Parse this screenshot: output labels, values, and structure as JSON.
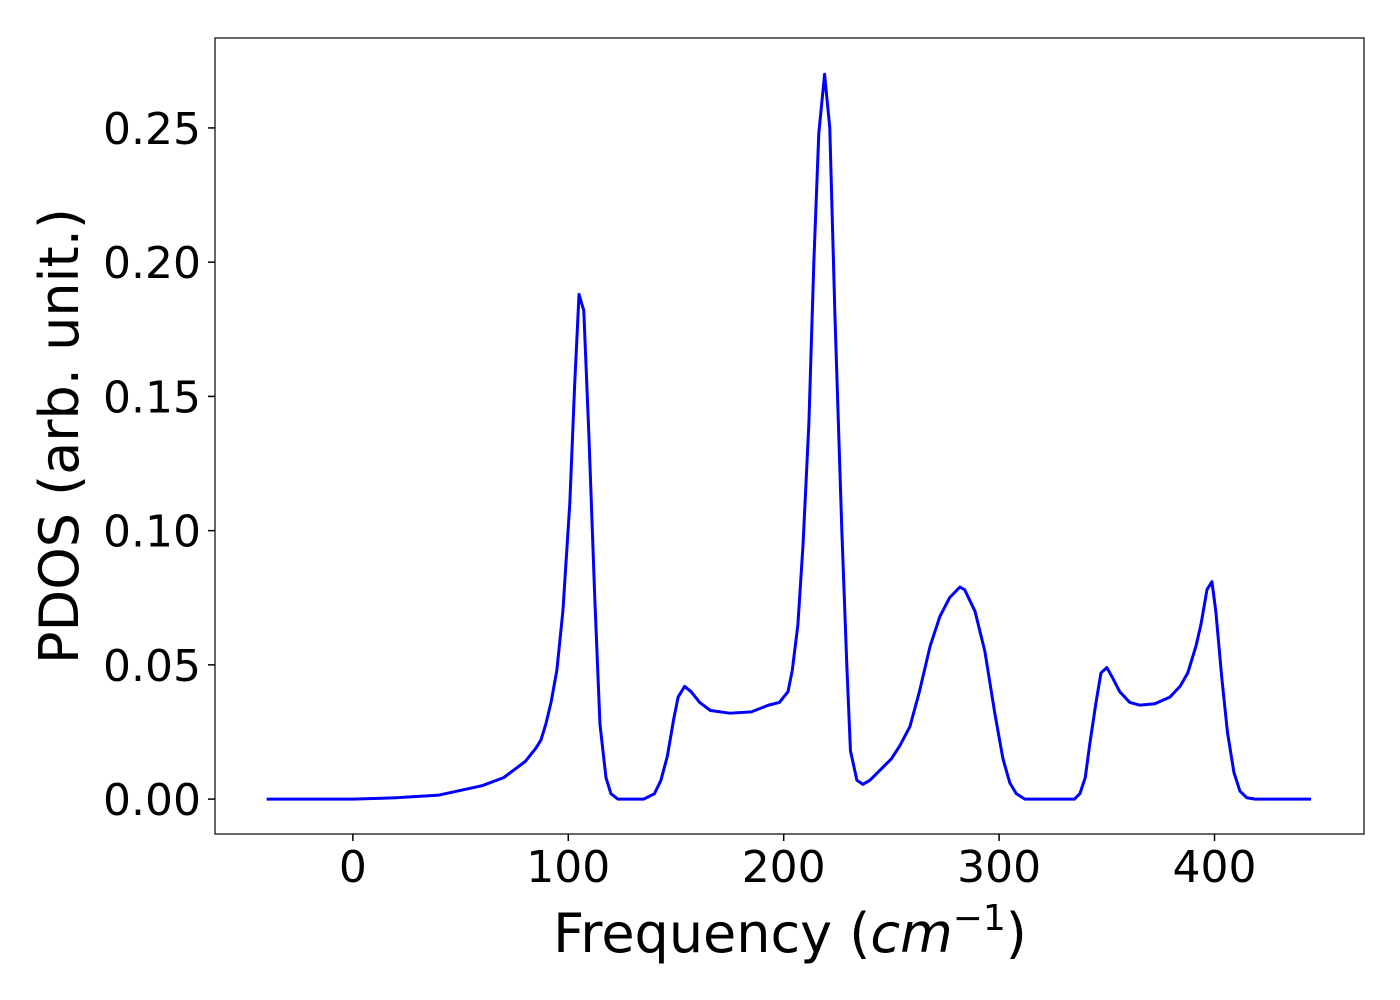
{
  "chart_data": {
    "type": "line",
    "xlabel": [
      "Frequency (",
      "cm",
      "−1",
      ")"
    ],
    "ylabel": "PDOS (arb. unit.)",
    "color": "#0000ff",
    "x": [
      -40,
      0,
      20,
      40,
      60,
      70,
      80,
      85,
      87.3,
      89.6,
      92,
      94.7,
      97.5,
      100.7,
      103,
      105,
      107.2,
      109.6,
      112.3,
      114.7,
      117.5,
      119.8,
      123,
      135,
      140,
      143,
      146,
      149,
      151,
      154,
      157,
      161,
      166,
      175,
      185,
      193,
      198,
      202,
      204,
      206.6,
      209,
      211.7,
      214,
      216.3,
      219,
      221.4,
      223.8,
      227,
      229.3,
      231,
      234,
      236.8,
      240,
      245,
      250,
      254,
      258.6,
      263,
      268,
      272.5,
      277,
      281.8,
      284,
      288.8,
      293.4,
      298,
      301.8,
      305,
      308,
      312,
      335,
      337.5,
      340,
      342,
      345,
      347.3,
      350,
      352.8,
      356,
      360.7,
      365.4,
      372.3,
      379.3,
      384,
      387.6,
      391.4,
      393.7,
      396.5,
      398.8,
      400.6,
      403.4,
      406,
      409,
      411.8,
      415,
      418.8,
      444.8
    ],
    "values": [
      0,
      0,
      0.0005,
      0.0015,
      0.005,
      0.008,
      0.014,
      0.019,
      0.022,
      0.028,
      0.036,
      0.048,
      0.07,
      0.11,
      0.155,
      0.188,
      0.182,
      0.135,
      0.075,
      0.028,
      0.008,
      0.002,
      0,
      0,
      0.002,
      0.007,
      0.016,
      0.03,
      0.038,
      0.042,
      0.04,
      0.036,
      0.033,
      0.032,
      0.0325,
      0.035,
      0.036,
      0.04,
      0.048,
      0.065,
      0.095,
      0.14,
      0.2,
      0.248,
      0.27,
      0.25,
      0.18,
      0.1,
      0.05,
      0.018,
      0.007,
      0.0055,
      0.007,
      0.011,
      0.015,
      0.02,
      0.027,
      0.04,
      0.057,
      0.068,
      0.075,
      0.079,
      0.078,
      0.07,
      0.055,
      0.032,
      0.015,
      0.006,
      0.002,
      0,
      0,
      0.002,
      0.008,
      0.02,
      0.036,
      0.047,
      0.049,
      0.045,
      0.04,
      0.036,
      0.035,
      0.0355,
      0.038,
      0.042,
      0.047,
      0.057,
      0.065,
      0.078,
      0.081,
      0.07,
      0.045,
      0.025,
      0.01,
      0.003,
      0.0005,
      0,
      0
    ],
    "xlim": [
      -64,
      469.4
    ],
    "ylim": [
      -0.013,
      0.2835
    ],
    "xticks": [
      0,
      100,
      200,
      300,
      400
    ],
    "yticks": [
      {
        "value": 0,
        "label": "0.00"
      },
      0.05,
      {
        "value": 0.1,
        "label": "0.10"
      },
      0.15,
      {
        "value": 0.2,
        "label": "0.20"
      },
      0.25
    ]
  }
}
